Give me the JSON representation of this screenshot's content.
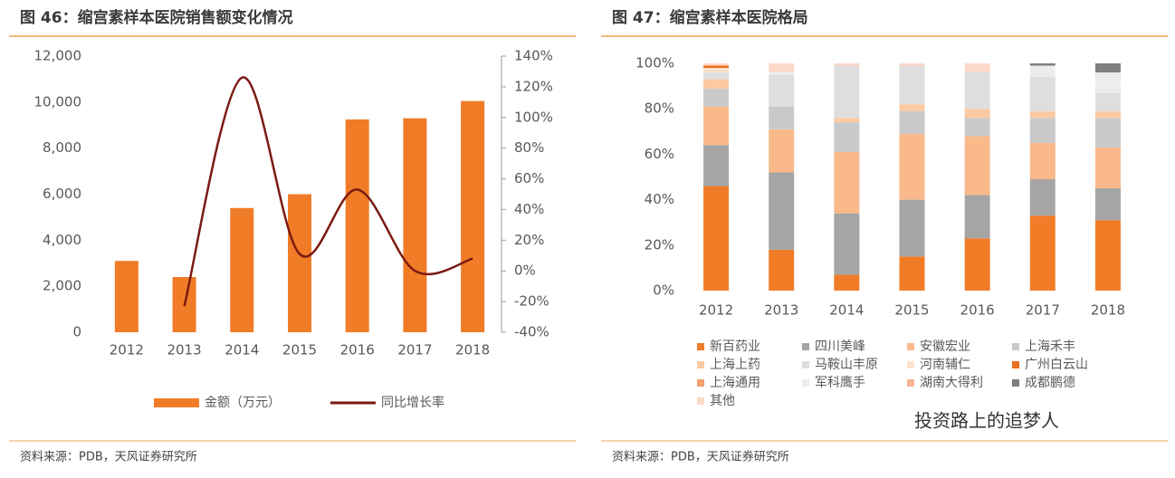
{
  "chart_data": [
    {
      "type": "bar-line",
      "title": "图 46：缩宫素样本医院销售额变化情况",
      "categories": [
        "2012",
        "2013",
        "2014",
        "2015",
        "2016",
        "2017",
        "2018"
      ],
      "series": [
        {
          "name": "金额（万元）",
          "color": "#f07c28",
          "values": [
            3100,
            2400,
            5400,
            6000,
            9250,
            9300,
            10050
          ]
        },
        {
          "name": "同比增长率",
          "color": "#7b1a12",
          "axis": "y2",
          "values": [
            null,
            -23,
            126,
            11,
            53,
            0,
            8
          ]
        }
      ],
      "ylim": [
        0,
        12000
      ],
      "yticks": [
        0,
        {
          "value": 2000,
          "label": "2,000"
        },
        {
          "value": 4000,
          "label": "4,000"
        },
        {
          "value": 6000,
          "label": "6,000"
        },
        {
          "value": 8000,
          "label": "8,000"
        },
        {
          "value": 10000,
          "label": "10,000"
        },
        {
          "value": 12000,
          "label": "12,000"
        }
      ],
      "y2lim": [
        -40,
        140
      ],
      "y2ticks": [
        {
          "value": -40,
          "label": "-40%"
        },
        {
          "value": -20,
          "label": "-20%"
        },
        {
          "value": 0,
          "label": "0%"
        },
        {
          "value": 20,
          "label": "20%"
        },
        {
          "value": 40,
          "label": "40%"
        },
        {
          "value": 60,
          "label": "60%"
        },
        {
          "value": 80,
          "label": "80%"
        },
        {
          "value": 100,
          "label": "100%"
        },
        {
          "value": 120,
          "label": "120%"
        },
        {
          "value": 140,
          "label": "140%"
        }
      ],
      "source": "资料来源：PDB，天风证券研究所"
    },
    {
      "type": "stacked-bar",
      "title": "图 47：缩宫素样本医院格局",
      "categories": [
        "2012",
        "2013",
        "2014",
        "2015",
        "2016",
        "2017",
        "2018"
      ],
      "series": [
        {
          "name": "新百药业",
          "color": "#f07c28",
          "values": [
            46,
            18,
            7,
            15,
            23,
            33,
            31
          ]
        },
        {
          "name": "四川美峰",
          "color": "#a5a5a5",
          "values": [
            18,
            34,
            27,
            25,
            19,
            16,
            14
          ]
        },
        {
          "name": "安徽宏业",
          "color": "#f9b98a",
          "values": [
            17,
            19,
            27,
            29,
            26,
            16,
            18
          ]
        },
        {
          "name": "上海禾丰",
          "color": "#c9c9c9",
          "values": [
            8,
            10,
            13,
            10,
            8,
            11,
            13
          ]
        },
        {
          "name": "上海上药",
          "color": "#fbc9a2",
          "values": [
            4,
            0,
            2,
            3,
            4,
            3,
            3
          ]
        },
        {
          "name": "马鞍山丰原",
          "color": "#dedede",
          "values": [
            3,
            14,
            23,
            17,
            16,
            15,
            8
          ]
        },
        {
          "name": "河南辅仁",
          "color": "#fde3cf",
          "values": [
            2,
            0,
            0,
            0,
            0,
            0,
            0
          ]
        },
        {
          "name": "广州白云山",
          "color": "#e8701e",
          "values": [
            1,
            0,
            0,
            0,
            0,
            0,
            0
          ]
        },
        {
          "name": "上海通用",
          "color": "#f4a070",
          "values": [
            0,
            0,
            0,
            0,
            0,
            0,
            0
          ]
        },
        {
          "name": "军科鹰手",
          "color": "#ededed",
          "values": [
            0,
            1,
            0,
            0,
            0,
            5,
            9
          ]
        },
        {
          "name": "湖南大得利",
          "color": "#f7b494",
          "values": [
            0,
            0,
            0,
            0,
            0,
            0,
            0
          ]
        },
        {
          "name": "成都鹏德",
          "color": "#7f7f7f",
          "values": [
            0,
            0,
            0,
            0,
            0,
            1,
            4
          ]
        },
        {
          "name": "其他",
          "color": "#fcd9c8",
          "values": [
            1,
            4,
            1,
            1,
            4,
            0,
            0
          ]
        }
      ],
      "ylim": [
        0,
        100
      ],
      "yticks": [
        {
          "value": 0,
          "label": "0%"
        },
        {
          "value": 20,
          "label": "20%"
        },
        {
          "value": 40,
          "label": "40%"
        },
        {
          "value": 60,
          "label": "60%"
        },
        {
          "value": 80,
          "label": "80%"
        },
        {
          "value": 100,
          "label": "100%"
        }
      ],
      "source": "资料来源：PDB，天风证券研究所"
    }
  ],
  "watermark": "投资路上的追梦人"
}
